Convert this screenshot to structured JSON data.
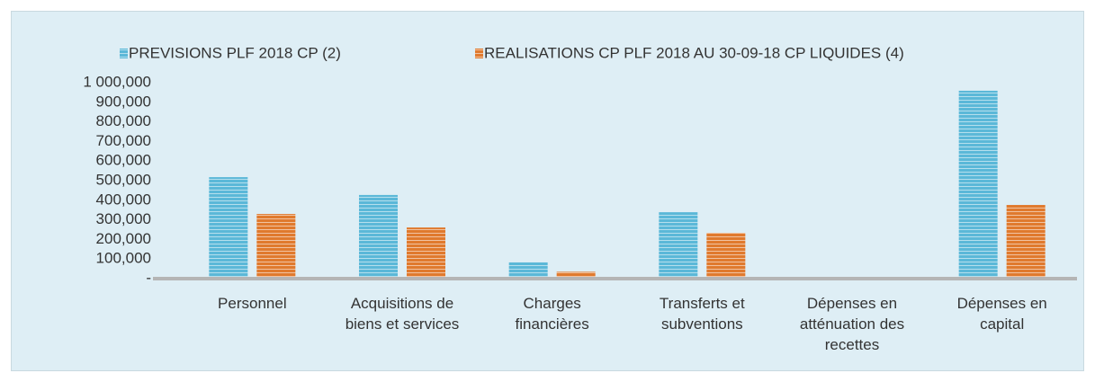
{
  "chart_data": {
    "type": "bar",
    "categories": [
      "Personnel",
      "Acquisitions de\nbiens et services",
      "Charges\nfinancières",
      "Transferts et\nsubventions",
      "Dépenses en\natténuation des\nrecettes",
      "Dépenses en\ncapital"
    ],
    "series": [
      {
        "name": "PREVISIONS PLF 2018 CP (2)",
        "color": "#5bb8d8",
        "values": [
          518000,
          427000,
          83000,
          339000,
          0,
          959000
        ]
      },
      {
        "name": "REALISATIONS CP PLF 2018 AU 30-09-18 CP  LIQUIDES (4)",
        "color": "#e07a2e",
        "values": [
          330000,
          261000,
          35000,
          234000,
          0,
          376000
        ]
      }
    ],
    "ylim": [
      0,
      1000000
    ],
    "yticks": [
      {
        "value": 0,
        "label": "-"
      },
      {
        "value": 100000,
        "label": "100,000"
      },
      {
        "value": 200000,
        "label": "200,000"
      },
      {
        "value": 300000,
        "label": "300,000"
      },
      {
        "value": 400000,
        "label": "400,000"
      },
      {
        "value": 500000,
        "label": "500,000"
      },
      {
        "value": 600000,
        "label": "600,000"
      },
      {
        "value": 700000,
        "label": "700,000"
      },
      {
        "value": 800000,
        "label": "800,000"
      },
      {
        "value": 900000,
        "label": "900,000"
      },
      {
        "value": 1000000,
        "label": "1 000,000"
      }
    ],
    "legend": "top"
  }
}
